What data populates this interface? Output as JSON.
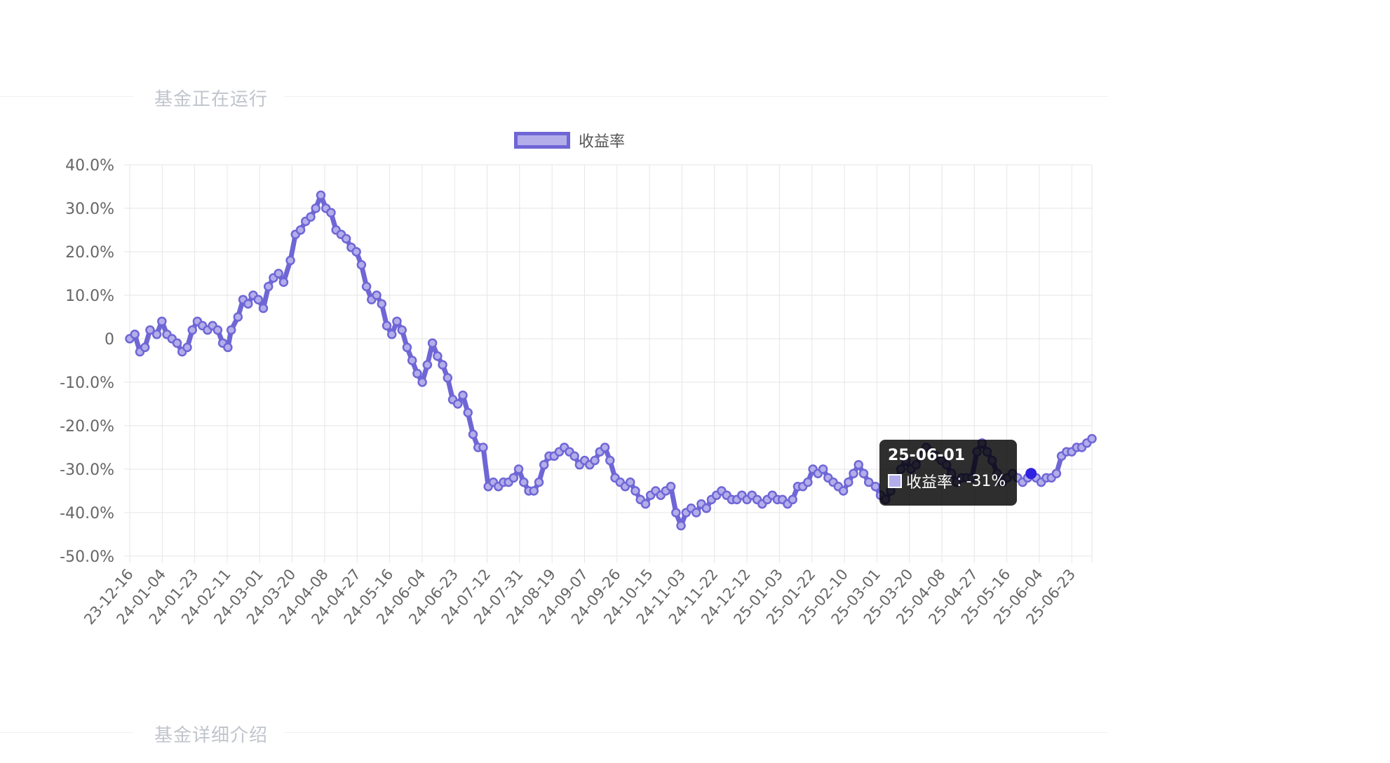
{
  "sections": {
    "running_title": "基金正在运行",
    "detail_title": "基金详细介绍"
  },
  "colors": {
    "line": "#6f66d6",
    "fill": "#b3aeea",
    "grid": "#e6e6e6",
    "axis_text": "#666666",
    "section_title": "#c0c4cc",
    "highlight_point": "#2f22e0"
  },
  "tooltip": {
    "title": "25-06-01",
    "series_label": "收益率",
    "value_text": "-31%"
  },
  "chart_data": {
    "type": "line",
    "legend": "收益率",
    "legend_position": "top",
    "grid": true,
    "y_axis": {
      "min": -50,
      "max": 40,
      "step": 10,
      "tick_labels": [
        "-50.0%",
        "-40.0%",
        "-30.0%",
        "-20.0%",
        "-10.0%",
        "0",
        "10.0%",
        "20.0%",
        "30.0%",
        "40.0%"
      ]
    },
    "x_axis": {
      "start": "2023-12-16",
      "end": "2025-07-07",
      "tick_labels": [
        "23-12-16",
        "24-01-04",
        "24-01-23",
        "24-02-11",
        "24-03-01",
        "24-03-20",
        "24-04-08",
        "24-04-27",
        "24-05-16",
        "24-06-04",
        "24-06-23",
        "24-07-12",
        "24-07-31",
        "24-08-19",
        "24-09-07",
        "24-09-26",
        "24-10-15",
        "24-11-03",
        "24-11-22",
        "24-12-12",
        "25-01-03",
        "25-01-22",
        "25-02-10",
        "25-03-01",
        "25-03-20",
        "25-04-08",
        "25-04-27",
        "25-05-16",
        "25-06-04",
        "25-06-23"
      ]
    },
    "series": [
      {
        "name": "收益率",
        "points": [
          [
            "2023-12-16",
            0
          ],
          [
            "2023-12-19",
            1
          ],
          [
            "2023-12-22",
            -3
          ],
          [
            "2023-12-25",
            -2
          ],
          [
            "2023-12-28",
            2
          ],
          [
            "2024-01-01",
            1
          ],
          [
            "2024-01-04",
            4
          ],
          [
            "2024-01-07",
            1
          ],
          [
            "2024-01-10",
            0
          ],
          [
            "2024-01-13",
            -1
          ],
          [
            "2024-01-16",
            -3
          ],
          [
            "2024-01-19",
            -2
          ],
          [
            "2024-01-22",
            2
          ],
          [
            "2024-01-25",
            4
          ],
          [
            "2024-01-28",
            3
          ],
          [
            "2024-01-31",
            2
          ],
          [
            "2024-02-03",
            3
          ],
          [
            "2024-02-06",
            2
          ],
          [
            "2024-02-09",
            -1
          ],
          [
            "2024-02-12",
            -2
          ],
          [
            "2024-02-14",
            2
          ],
          [
            "2024-02-18",
            5
          ],
          [
            "2024-02-21",
            9
          ],
          [
            "2024-02-24",
            8
          ],
          [
            "2024-02-27",
            10
          ],
          [
            "2024-03-01",
            9
          ],
          [
            "2024-03-04",
            7
          ],
          [
            "2024-03-07",
            12
          ],
          [
            "2024-03-10",
            14
          ],
          [
            "2024-03-13",
            15
          ],
          [
            "2024-03-16",
            13
          ],
          [
            "2024-03-20",
            18
          ],
          [
            "2024-03-23",
            24
          ],
          [
            "2024-03-26",
            25
          ],
          [
            "2024-03-29",
            27
          ],
          [
            "2024-04-01",
            28
          ],
          [
            "2024-04-04",
            30
          ],
          [
            "2024-04-07",
            33
          ],
          [
            "2024-04-10",
            30
          ],
          [
            "2024-04-13",
            29
          ],
          [
            "2024-04-16",
            25
          ],
          [
            "2024-04-19",
            24
          ],
          [
            "2024-04-22",
            23
          ],
          [
            "2024-04-25",
            21
          ],
          [
            "2024-04-28",
            20
          ],
          [
            "2024-05-01",
            17
          ],
          [
            "2024-05-04",
            12
          ],
          [
            "2024-05-07",
            9
          ],
          [
            "2024-05-10",
            10
          ],
          [
            "2024-05-13",
            8
          ],
          [
            "2024-05-16",
            3
          ],
          [
            "2024-05-19",
            1
          ],
          [
            "2024-05-22",
            4
          ],
          [
            "2024-05-25",
            2
          ],
          [
            "2024-05-28",
            -2
          ],
          [
            "2024-05-31",
            -5
          ],
          [
            "2024-06-03",
            -8
          ],
          [
            "2024-06-06",
            -10
          ],
          [
            "2024-06-09",
            -6
          ],
          [
            "2024-06-12",
            -1
          ],
          [
            "2024-06-15",
            -4
          ],
          [
            "2024-06-18",
            -6
          ],
          [
            "2024-06-21",
            -9
          ],
          [
            "2024-06-24",
            -14
          ],
          [
            "2024-06-27",
            -15
          ],
          [
            "2024-06-30",
            -13
          ],
          [
            "2024-07-03",
            -17
          ],
          [
            "2024-07-06",
            -22
          ],
          [
            "2024-07-09",
            -25
          ],
          [
            "2024-07-12",
            -25
          ],
          [
            "2024-07-15",
            -34
          ],
          [
            "2024-07-18",
            -33
          ],
          [
            "2024-07-21",
            -34
          ],
          [
            "2024-07-24",
            -33
          ],
          [
            "2024-07-27",
            -33
          ],
          [
            "2024-07-30",
            -32
          ],
          [
            "2024-08-02",
            -30
          ],
          [
            "2024-08-05",
            -33
          ],
          [
            "2024-08-08",
            -35
          ],
          [
            "2024-08-11",
            -35
          ],
          [
            "2024-08-14",
            -33
          ],
          [
            "2024-08-17",
            -29
          ],
          [
            "2024-08-20",
            -27
          ],
          [
            "2024-08-23",
            -27
          ],
          [
            "2024-08-26",
            -26
          ],
          [
            "2024-08-29",
            -25
          ],
          [
            "2024-09-01",
            -26
          ],
          [
            "2024-09-04",
            -27
          ],
          [
            "2024-09-07",
            -29
          ],
          [
            "2024-09-10",
            -28
          ],
          [
            "2024-09-13",
            -29
          ],
          [
            "2024-09-16",
            -28
          ],
          [
            "2024-09-19",
            -26
          ],
          [
            "2024-09-22",
            -25
          ],
          [
            "2024-09-25",
            -28
          ],
          [
            "2024-09-28",
            -32
          ],
          [
            "2024-10-01",
            -33
          ],
          [
            "2024-10-04",
            -34
          ],
          [
            "2024-10-07",
            -33
          ],
          [
            "2024-10-10",
            -35
          ],
          [
            "2024-10-13",
            -37
          ],
          [
            "2024-10-16",
            -38
          ],
          [
            "2024-10-19",
            -36
          ],
          [
            "2024-10-22",
            -35
          ],
          [
            "2024-10-25",
            -36
          ],
          [
            "2024-10-28",
            -35
          ],
          [
            "2024-10-31",
            -34
          ],
          [
            "2024-11-03",
            -40
          ],
          [
            "2024-11-06",
            -43
          ],
          [
            "2024-11-09",
            -40
          ],
          [
            "2024-11-12",
            -39
          ],
          [
            "2024-11-15",
            -40
          ],
          [
            "2024-11-18",
            -38
          ],
          [
            "2024-11-21",
            -39
          ],
          [
            "2024-11-24",
            -37
          ],
          [
            "2024-11-27",
            -36
          ],
          [
            "2024-11-30",
            -35
          ],
          [
            "2024-12-03",
            -36
          ],
          [
            "2024-12-06",
            -37
          ],
          [
            "2024-12-09",
            -37
          ],
          [
            "2024-12-12",
            -36
          ],
          [
            "2024-12-15",
            -37
          ],
          [
            "2024-12-18",
            -36
          ],
          [
            "2024-12-21",
            -37
          ],
          [
            "2024-12-24",
            -38
          ],
          [
            "2024-12-27",
            -37
          ],
          [
            "2024-12-30",
            -36
          ],
          [
            "2025-01-02",
            -37
          ],
          [
            "2025-01-05",
            -37
          ],
          [
            "2025-01-08",
            -38
          ],
          [
            "2025-01-11",
            -37
          ],
          [
            "2025-01-14",
            -34
          ],
          [
            "2025-01-17",
            -34
          ],
          [
            "2025-01-20",
            -33
          ],
          [
            "2025-01-23",
            -30
          ],
          [
            "2025-01-26",
            -31
          ],
          [
            "2025-01-29",
            -30
          ],
          [
            "2025-02-01",
            -32
          ],
          [
            "2025-02-04",
            -33
          ],
          [
            "2025-02-07",
            -34
          ],
          [
            "2025-02-10",
            -35
          ],
          [
            "2025-02-13",
            -33
          ],
          [
            "2025-02-16",
            -31
          ],
          [
            "2025-02-19",
            -29
          ],
          [
            "2025-02-22",
            -31
          ],
          [
            "2025-02-25",
            -33
          ],
          [
            "2025-03-01",
            -34
          ],
          [
            "2025-03-04",
            -36
          ],
          [
            "2025-03-07",
            -37
          ],
          [
            "2025-03-10",
            -35
          ],
          [
            "2025-03-13",
            -33
          ],
          [
            "2025-03-16",
            -30
          ],
          [
            "2025-03-19",
            -28
          ],
          [
            "2025-03-22",
            -30
          ],
          [
            "2025-03-25",
            -29
          ],
          [
            "2025-03-28",
            -27
          ],
          [
            "2025-03-31",
            -25
          ],
          [
            "2025-04-03",
            -26
          ],
          [
            "2025-04-06",
            -27
          ],
          [
            "2025-04-09",
            -28
          ],
          [
            "2025-04-12",
            -29
          ],
          [
            "2025-04-15",
            -31
          ],
          [
            "2025-04-18",
            -33
          ],
          [
            "2025-04-21",
            -32
          ],
          [
            "2025-04-24",
            -32
          ],
          [
            "2025-04-27",
            -32
          ],
          [
            "2025-04-30",
            -26
          ],
          [
            "2025-05-03",
            -24
          ],
          [
            "2025-05-06",
            -26
          ],
          [
            "2025-05-09",
            -28
          ],
          [
            "2025-05-12",
            -31
          ],
          [
            "2025-05-15",
            -33
          ],
          [
            "2025-05-18",
            -32
          ],
          [
            "2025-05-21",
            -31
          ],
          [
            "2025-05-24",
            -32
          ],
          [
            "2025-05-27",
            -33
          ],
          [
            "2025-05-30",
            -32
          ],
          [
            "2025-06-01",
            -31
          ],
          [
            "2025-06-04",
            -32
          ],
          [
            "2025-06-07",
            -33
          ],
          [
            "2025-06-10",
            -32
          ],
          [
            "2025-06-13",
            -32
          ],
          [
            "2025-06-16",
            -31
          ],
          [
            "2025-06-19",
            -27
          ],
          [
            "2025-06-22",
            -26
          ],
          [
            "2025-06-25",
            -26
          ],
          [
            "2025-06-28",
            -25
          ],
          [
            "2025-07-01",
            -25
          ],
          [
            "2025-07-04",
            -24
          ],
          [
            "2025-07-07",
            -23
          ]
        ]
      }
    ],
    "highlight": {
      "x": "2025-06-01",
      "y": -31
    }
  }
}
